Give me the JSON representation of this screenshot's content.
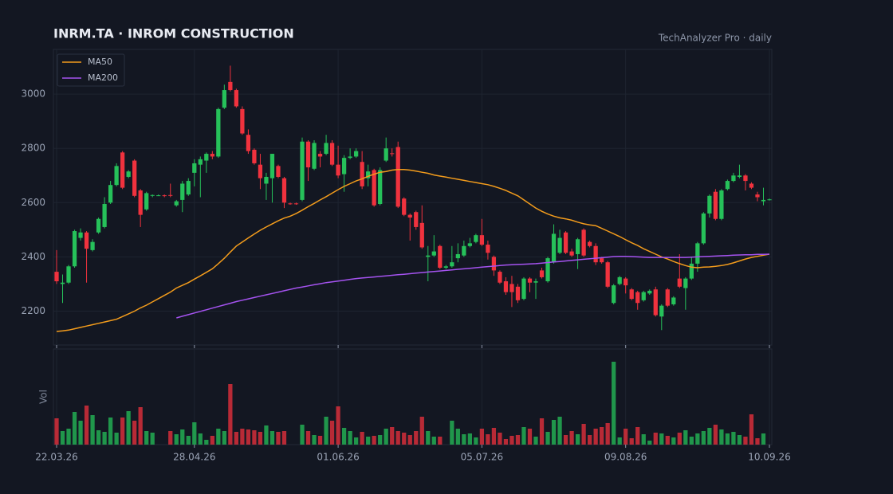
{
  "chart_data": {
    "type": "candlestick",
    "title": "INRM.TA  ·  INROM CONSTRUCTION",
    "subtitle": "TechAnalyzer Pro · daily",
    "volume_label": "Vol",
    "legend": "upper left",
    "grid": true,
    "up_color": "#26c15a",
    "down_color": "#f0323e",
    "ylim": [
      2075,
      3165
    ],
    "yticks": [
      2200,
      2400,
      2600,
      2800,
      3000
    ],
    "categories": [
      "22.03.26",
      null,
      null,
      null,
      null,
      null,
      null,
      null,
      null,
      null,
      null,
      null,
      null,
      null,
      null,
      null,
      null,
      null,
      null,
      null,
      null,
      null,
      null,
      "28.04.26",
      null,
      null,
      null,
      null,
      null,
      null,
      null,
      null,
      null,
      null,
      null,
      null,
      null,
      null,
      null,
      null,
      null,
      null,
      null,
      null,
      null,
      null,
      null,
      "01.06.26",
      null,
      null,
      null,
      null,
      null,
      null,
      null,
      null,
      null,
      null,
      null,
      null,
      null,
      null,
      null,
      null,
      null,
      null,
      null,
      null,
      null,
      null,
      null,
      "05.07.26",
      null,
      null,
      null,
      null,
      null,
      null,
      null,
      null,
      null,
      null,
      null,
      null,
      null,
      null,
      null,
      null,
      null,
      null,
      null,
      null,
      null,
      null,
      null,
      "09.08.26",
      null,
      null,
      null,
      null,
      null,
      null,
      null,
      null,
      null,
      null,
      null,
      null,
      null,
      null,
      null,
      null,
      null,
      null,
      null,
      null,
      null,
      null,
      null,
      "10.09.26"
    ],
    "open": [
      2345,
      2300,
      2305,
      2365,
      2470,
      2490,
      2425,
      2490,
      2510,
      2600,
      2665,
      2785,
      2695,
      2755,
      2645,
      2575,
      2625,
      2627,
      2627,
      2628,
      2590,
      2610,
      2630,
      2710,
      2740,
      2755,
      2780,
      2770,
      2950,
      3045,
      3015,
      2945,
      2850,
      2795,
      2740,
      2670,
      2690,
      2735,
      2690,
      2597,
      2597,
      2610,
      2825,
      2725,
      2780,
      2780,
      2820,
      2740,
      2705,
      2765,
      2770,
      2750,
      2690,
      2720,
      2595,
      2755,
      2782,
      2805,
      2615,
      2555,
      2565,
      2525,
      2400,
      2405,
      2440,
      2360,
      2365,
      2395,
      2405,
      2440,
      2455,
      2480,
      2445,
      2400,
      2345,
      2310,
      2300,
      2290,
      2245,
      2320,
      2305,
      2350,
      2310,
      2380,
      2415,
      2490,
      2420,
      2410,
      2500,
      2455,
      2440,
      2395,
      2380,
      2230,
      2300,
      2320,
      2280,
      2270,
      2240,
      2265,
      2280,
      2180,
      2280,
      2225,
      2320,
      2285,
      2320,
      2375,
      2450,
      2560,
      2640,
      2540,
      2650,
      2680,
      2695,
      2700,
      2670,
      2630,
      2605,
      2612
    ],
    "high": [
      2425,
      2335,
      2370,
      2500,
      2505,
      2495,
      2465,
      2545,
      2620,
      2680,
      2745,
      2790,
      2720,
      2760,
      2650,
      2640,
      2630,
      2630,
      2630,
      2670,
      2610,
      2680,
      2690,
      2760,
      2770,
      2785,
      2790,
      2950,
      3035,
      3105,
      3020,
      2955,
      2870,
      2800,
      2780,
      2710,
      2780,
      2740,
      2695,
      2600,
      2600,
      2840,
      2830,
      2830,
      2790,
      2850,
      2830,
      2810,
      2775,
      2800,
      2800,
      2790,
      2740,
      2725,
      2730,
      2840,
      2800,
      2825,
      2620,
      2560,
      2570,
      2590,
      2440,
      2480,
      2445,
      2370,
      2440,
      2450,
      2460,
      2470,
      2485,
      2540,
      2460,
      2405,
      2350,
      2325,
      2330,
      2300,
      2325,
      2325,
      2320,
      2360,
      2400,
      2520,
      2500,
      2495,
      2430,
      2470,
      2505,
      2460,
      2450,
      2400,
      2385,
      2300,
      2330,
      2325,
      2285,
      2275,
      2275,
      2280,
      2290,
      2225,
      2285,
      2255,
      2410,
      2325,
      2400,
      2455,
      2565,
      2630,
      2650,
      2650,
      2685,
      2710,
      2740,
      2705,
      2675,
      2640,
      2655,
      2615
    ],
    "low": [
      2300,
      2230,
      2300,
      2360,
      2460,
      2305,
      2420,
      2485,
      2505,
      2595,
      2660,
      2650,
      2690,
      2620,
      2510,
      2570,
      2620,
      2625,
      2620,
      2620,
      2585,
      2565,
      2625,
      2660,
      2620,
      2710,
      2760,
      2765,
      2945,
      3010,
      2950,
      2850,
      2780,
      2740,
      2650,
      2610,
      2600,
      2690,
      2580,
      2592,
      2592,
      2605,
      2680,
      2720,
      2730,
      2775,
      2735,
      2690,
      2640,
      2760,
      2765,
      2650,
      2660,
      2585,
      2590,
      2750,
      2770,
      2580,
      2550,
      2460,
      2500,
      2430,
      2310,
      2400,
      2355,
      2355,
      2360,
      2380,
      2400,
      2435,
      2450,
      2440,
      2390,
      2330,
      2300,
      2260,
      2215,
      2230,
      2240,
      2270,
      2245,
      2320,
      2305,
      2375,
      2410,
      2410,
      2400,
      2355,
      2400,
      2435,
      2370,
      2375,
      2285,
      2225,
      2295,
      2265,
      2240,
      2205,
      2235,
      2260,
      2180,
      2130,
      2215,
      2220,
      2285,
      2205,
      2315,
      2345,
      2445,
      2545,
      2535,
      2535,
      2645,
      2675,
      2690,
      2645,
      2650,
      2605,
      2590,
      2608
    ],
    "close": [
      2310,
      2305,
      2365,
      2495,
      2490,
      2430,
      2455,
      2540,
      2595,
      2665,
      2735,
      2655,
      2715,
      2625,
      2555,
      2635,
      2628,
      2627,
      2625,
      2625,
      2605,
      2670,
      2680,
      2745,
      2760,
      2780,
      2770,
      2945,
      3015,
      3015,
      2955,
      2855,
      2790,
      2745,
      2690,
      2695,
      2780,
      2695,
      2600,
      2595,
      2595,
      2825,
      2730,
      2820,
      2770,
      2820,
      2740,
      2700,
      2765,
      2770,
      2790,
      2660,
      2715,
      2590,
      2720,
      2800,
      2780,
      2585,
      2555,
      2545,
      2510,
      2435,
      2405,
      2420,
      2360,
      2365,
      2380,
      2410,
      2440,
      2450,
      2480,
      2445,
      2415,
      2350,
      2305,
      2270,
      2270,
      2240,
      2320,
      2305,
      2310,
      2325,
      2395,
      2485,
      2470,
      2415,
      2405,
      2465,
      2405,
      2440,
      2380,
      2380,
      2290,
      2295,
      2325,
      2295,
      2245,
      2230,
      2270,
      2275,
      2185,
      2220,
      2220,
      2250,
      2290,
      2320,
      2375,
      2450,
      2560,
      2625,
      2540,
      2645,
      2680,
      2700,
      2700,
      2680,
      2655,
      2620,
      2610,
      2612
    ],
    "volume": [
      33,
      17,
      20,
      41,
      30,
      49,
      37,
      18,
      16,
      34,
      15,
      34,
      42,
      30,
      47,
      17,
      15,
      0,
      0,
      17,
      13,
      19,
      11,
      28,
      14,
      6,
      11,
      20,
      17,
      76,
      16,
      20,
      19,
      18,
      16,
      24,
      17,
      16,
      17,
      0,
      0,
      25,
      17,
      12,
      11,
      35,
      30,
      48,
      21,
      17,
      9,
      16,
      10,
      11,
      12,
      20,
      22,
      17,
      15,
      12,
      17,
      35,
      17,
      10,
      10,
      0,
      30,
      20,
      13,
      14,
      9,
      20,
      13,
      21,
      15,
      7,
      11,
      12,
      22,
      20,
      10,
      33,
      16,
      31,
      35,
      12,
      17,
      13,
      26,
      12,
      20,
      22,
      27,
      104,
      9,
      20,
      8,
      22,
      13,
      5,
      15,
      14,
      11,
      9,
      15,
      18,
      10,
      14,
      17,
      21,
      25,
      19,
      14,
      16,
      12,
      10,
      38,
      8,
      14,
      0
    ],
    "series": [
      {
        "name": "MA50",
        "color": "#f39c1c",
        "values": [
          2125,
          2127,
          2130,
          2135,
          2140,
          2145,
          2150,
          2155,
          2160,
          2165,
          2170,
          2180,
          2190,
          2200,
          2212,
          2222,
          2234,
          2246,
          2258,
          2270,
          2285,
          2295,
          2305,
          2318,
          2330,
          2343,
          2356,
          2375,
          2395,
          2418,
          2440,
          2455,
          2470,
          2484,
          2498,
          2510,
          2522,
          2533,
          2543,
          2550,
          2560,
          2572,
          2585,
          2597,
          2610,
          2622,
          2635,
          2648,
          2660,
          2670,
          2680,
          2688,
          2697,
          2705,
          2712,
          2715,
          2720,
          2722,
          2722,
          2720,
          2716,
          2712,
          2708,
          2702,
          2698,
          2694,
          2690,
          2686,
          2682,
          2678,
          2674,
          2670,
          2666,
          2660,
          2653,
          2645,
          2635,
          2625,
          2610,
          2595,
          2580,
          2568,
          2558,
          2550,
          2544,
          2540,
          2535,
          2528,
          2522,
          2518,
          2515,
          2505,
          2495,
          2485,
          2475,
          2463,
          2452,
          2442,
          2430,
          2420,
          2410,
          2400,
          2392,
          2383,
          2375,
          2368,
          2362,
          2360,
          2362,
          2363,
          2365,
          2368,
          2372,
          2378,
          2385,
          2392,
          2398,
          2402,
          2406,
          2410
        ]
      },
      {
        "name": "MA200",
        "color": "#a553f0",
        "values": [
          null,
          null,
          null,
          null,
          null,
          null,
          null,
          null,
          null,
          null,
          null,
          null,
          null,
          null,
          null,
          null,
          null,
          null,
          null,
          null,
          2175,
          2181,
          2187,
          2193,
          2199,
          2205,
          2211,
          2217,
          2223,
          2229,
          2235,
          2240,
          2245,
          2250,
          2255,
          2260,
          2265,
          2270,
          2275,
          2280,
          2285,
          2289,
          2293,
          2297,
          2301,
          2305,
          2308,
          2311,
          2314,
          2317,
          2320,
          2322,
          2324,
          2326,
          2328,
          2330,
          2332,
          2334,
          2336,
          2338,
          2340,
          2342,
          2344,
          2346,
          2348,
          2350,
          2352,
          2354,
          2356,
          2358,
          2360,
          2362,
          2364,
          2366,
          2368,
          2370,
          2371,
          2372,
          2373,
          2374,
          2375,
          2377,
          2379,
          2381,
          2383,
          2385,
          2387,
          2389,
          2391,
          2393,
          2395,
          2397,
          2399,
          2401,
          2402,
          2402,
          2401,
          2400,
          2399,
          2398,
          2398,
          2398,
          2398,
          2398,
          2398,
          2398,
          2399,
          2400,
          2401,
          2402,
          2403,
          2404,
          2405,
          2406,
          2407,
          2408,
          2408,
          2409,
          2409,
          2410
        ]
      }
    ]
  }
}
